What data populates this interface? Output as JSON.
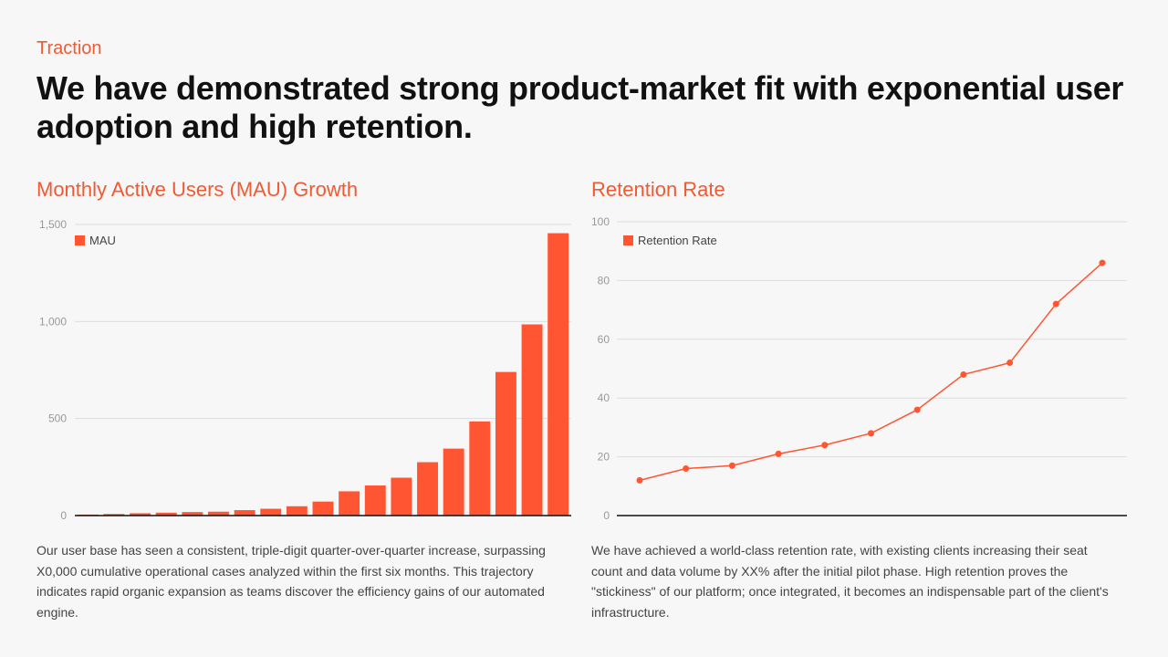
{
  "header": {
    "eyebrow": "Traction",
    "headline": "We have demonstrated strong product-market fit with exponential user adoption and high retention."
  },
  "colors": {
    "accent": "#f05a33",
    "bar": "#ff5533",
    "grid": "#dddddd",
    "axis": "#111111"
  },
  "chart_data": [
    {
      "type": "bar",
      "title": "Monthly Active Users (MAU) Growth",
      "series": [
        {
          "name": "MAU",
          "values": [
            5,
            8,
            12,
            15,
            18,
            20,
            28,
            35,
            48,
            72,
            125,
            155,
            195,
            275,
            345,
            485,
            740,
            985,
            1455
          ]
        }
      ],
      "ylim": [
        0,
        1500
      ],
      "yticks": [
        0,
        500,
        1000,
        1500
      ],
      "ytick_labels": [
        "0",
        "500",
        "1,000",
        "1,500"
      ],
      "legend": "top-left",
      "grid": true
    },
    {
      "type": "line",
      "title": "Retention Rate",
      "series": [
        {
          "name": "Retention Rate",
          "values": [
            12,
            16,
            17,
            21,
            24,
            28,
            36,
            48,
            52,
            72,
            86
          ]
        }
      ],
      "ylim": [
        0,
        100
      ],
      "yticks": [
        0,
        20,
        40,
        60,
        80,
        100
      ],
      "ytick_labels": [
        "0",
        "20",
        "40",
        "60",
        "80",
        "100"
      ],
      "legend": "top-left",
      "grid": true
    }
  ],
  "descriptions": {
    "mau": "Our user base has seen a consistent, triple-digit quarter-over-quarter increase, surpassing X0,000 cumulative operational cases analyzed within the first six months. This trajectory indicates rapid organic expansion as teams discover the efficiency gains of our automated engine.",
    "retention": "We have achieved a world-class retention rate, with existing clients increasing their seat count and data volume by XX% after the initial pilot phase. High retention proves the \"stickiness\" of our platform; once integrated, it becomes an indispensable part of the client's infrastructure."
  }
}
